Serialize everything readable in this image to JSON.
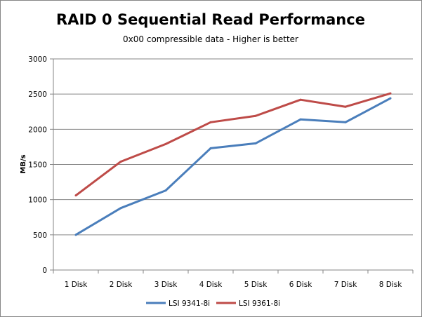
{
  "chart_data": {
    "type": "line",
    "title": "RAID 0 Sequential Read Performance",
    "subtitle": "0x00 compressible data - Higher is better",
    "xlabel": "",
    "ylabel": "MB/s",
    "ylim": [
      0,
      3000
    ],
    "yticks": [
      0,
      500,
      1000,
      1500,
      2000,
      2500,
      3000
    ],
    "grid": true,
    "legend_position": "bottom",
    "categories": [
      "1 Disk",
      "2 Disk",
      "3 Disk",
      "4 Disk",
      "5 Disk",
      "6 Disk",
      "7 Disk",
      "8 Disk"
    ],
    "series": [
      {
        "name": "LSI 9341-8i",
        "color": "#4a7ebb",
        "values": [
          500,
          880,
          1130,
          1730,
          1800,
          2140,
          2100,
          2440
        ]
      },
      {
        "name": "LSI 9361-8i",
        "color": "#be4b48",
        "values": [
          1060,
          1540,
          1790,
          2100,
          2190,
          2420,
          2320,
          2510
        ]
      }
    ]
  }
}
